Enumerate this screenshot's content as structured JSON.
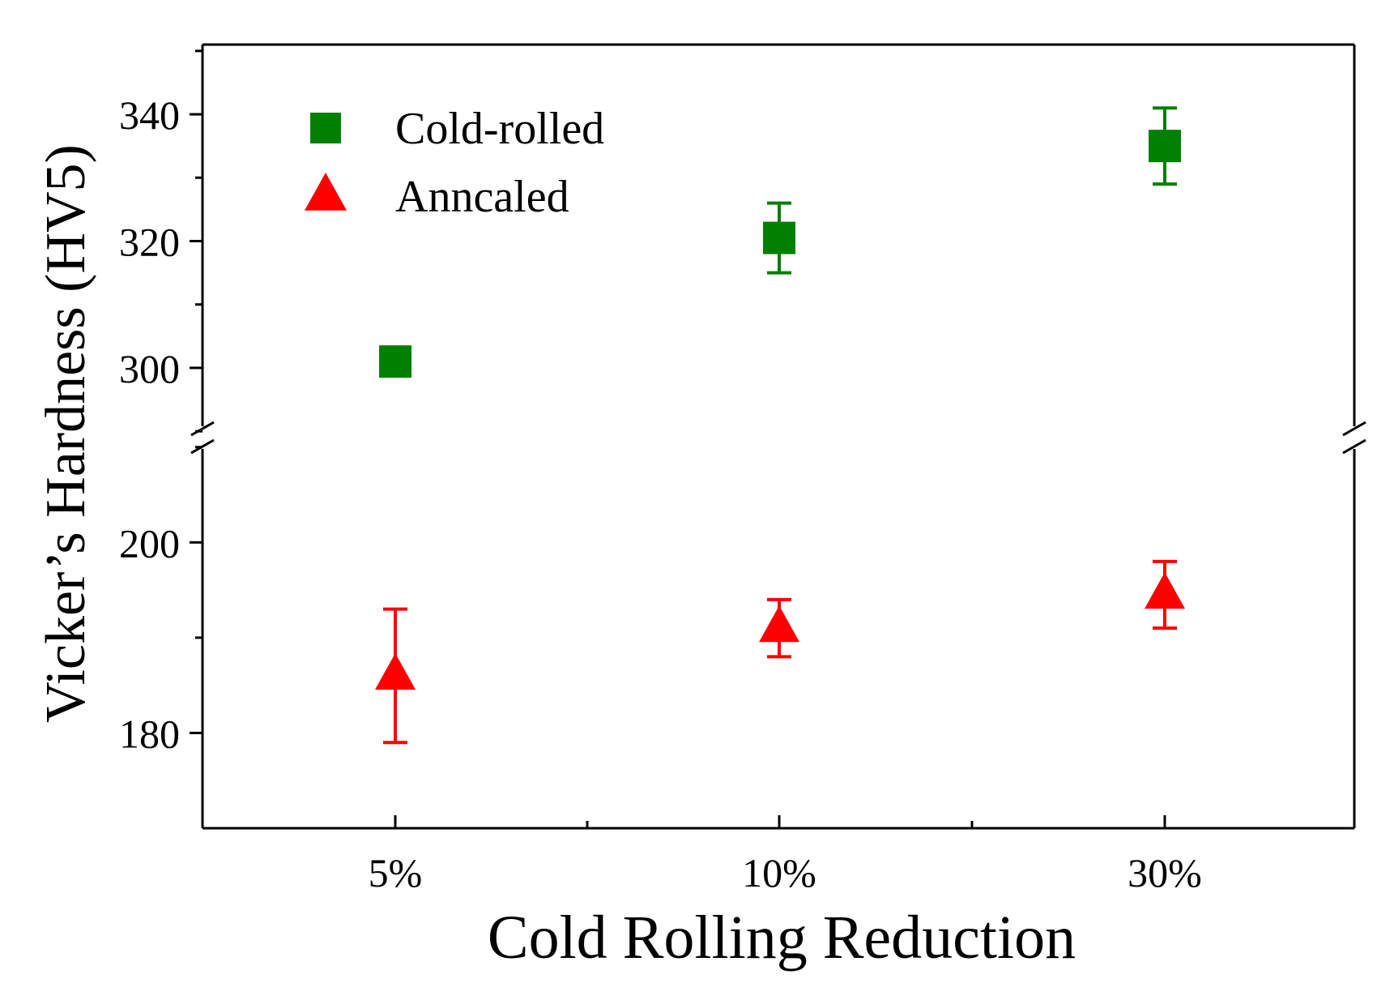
{
  "chart_data": {
    "type": "scatter",
    "title": "",
    "xlabel": "Cold Rolling Reduction",
    "ylabel": "Vicker’s Hardness (HV5)",
    "categories": [
      "5%",
      "10%",
      "30%"
    ],
    "axis_break": {
      "lower_range": [
        170,
        211
      ],
      "upper_range": [
        289,
        351
      ]
    },
    "lower_yticks": [
      180,
      200
    ],
    "upper_yticks": [
      300,
      320,
      340
    ],
    "legend_position": "top-left",
    "series": [
      {
        "name": "Cold-rolled",
        "marker": "square",
        "color": "#008000",
        "values": [
          301,
          320.5,
          335
        ],
        "errors": [
          0.5,
          5.5,
          6
        ]
      },
      {
        "name": "Anncaled",
        "marker": "triangle",
        "color": "#ff0000",
        "values": [
          186,
          191,
          194.5
        ],
        "errors": [
          7,
          3,
          3.5
        ]
      }
    ]
  }
}
